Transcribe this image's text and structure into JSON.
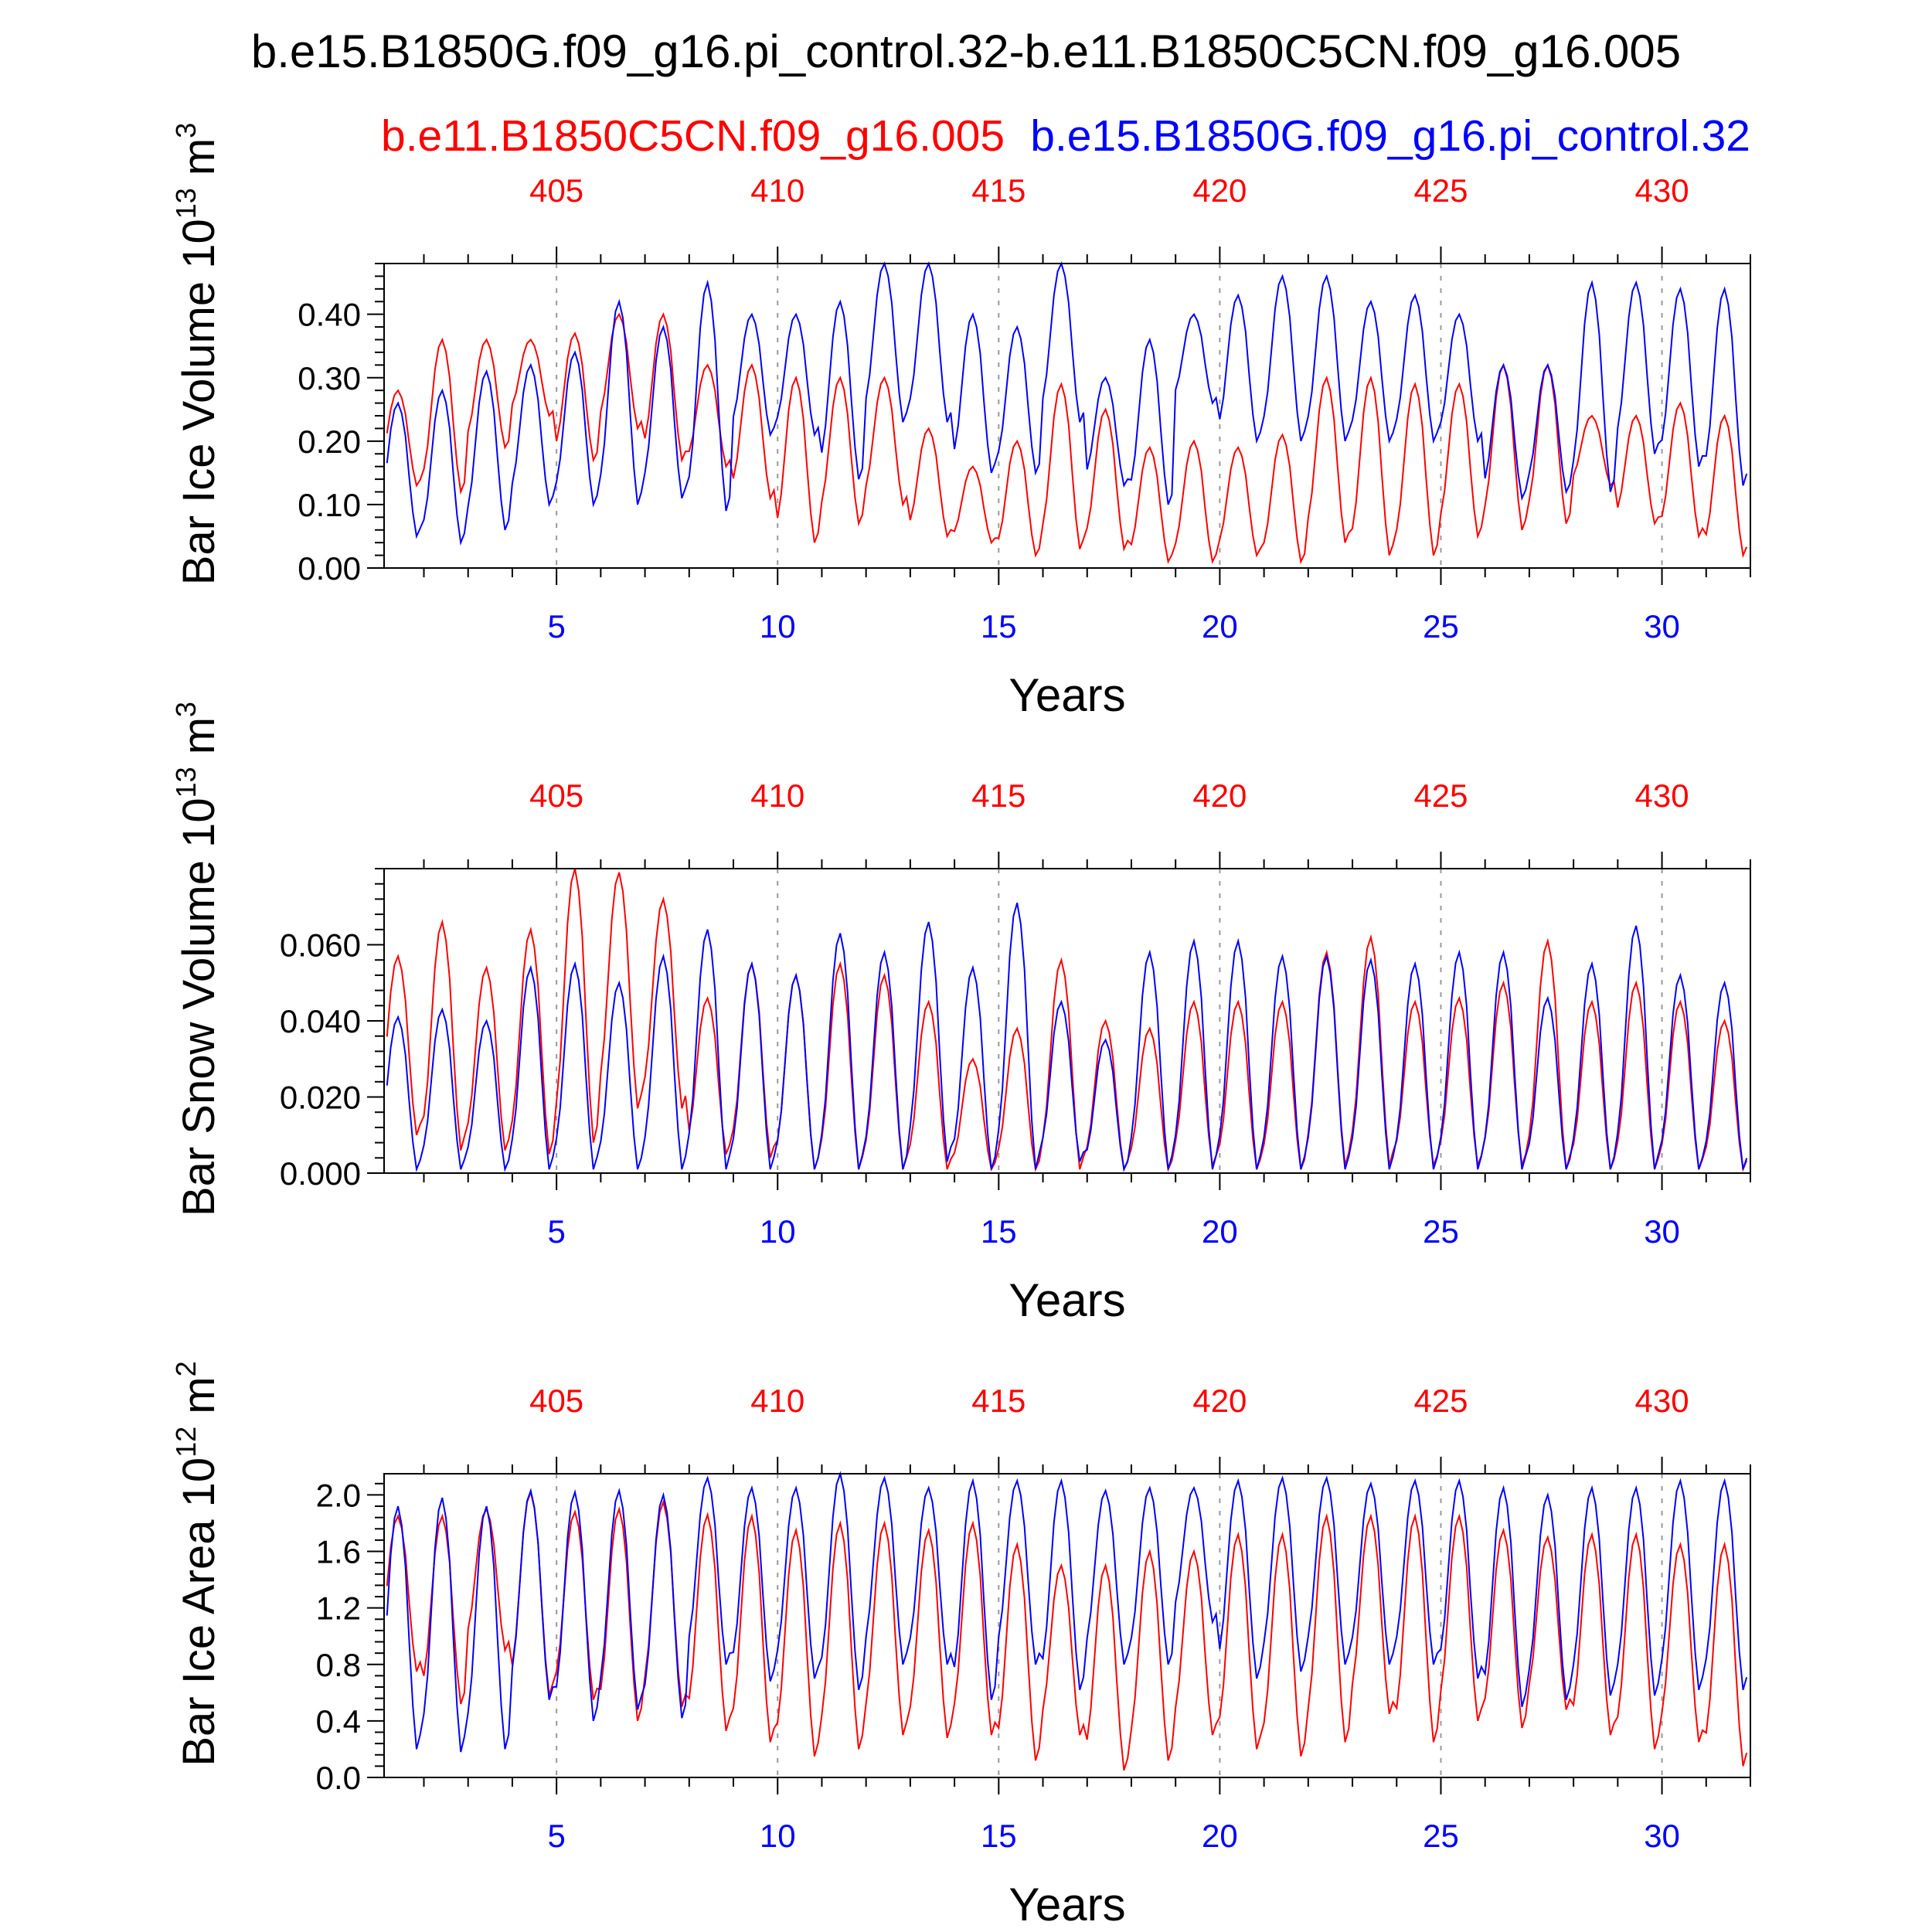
{
  "title": "b.e15.B1850G.f09_g16.pi_control.32-b.e11.B1850C5CN.f09_g16.005",
  "legend": {
    "red_case": "b.e11.B1850C5CN.f09_g16.005",
    "blue_case": "b.e15.B1850G.f09_g16.pi_control.32"
  },
  "colors": {
    "red": "#ff0000",
    "blue": "#0000ff",
    "grid": "#999999",
    "axis": "#000000"
  },
  "chart_data": [
    {
      "type": "line",
      "ylabel": "Bar Ice Volume",
      "yunit_base": "10",
      "yunit_exp": "13",
      "yunit_rest": "m",
      "yunit_pow": "3",
      "xlabel": "Years",
      "xlim": [
        1.1,
        32
      ],
      "ylim": [
        0,
        0.48
      ],
      "yticks": [
        0.0,
        0.1,
        0.2,
        0.3,
        0.4
      ],
      "ytick_labels": [
        "0.00",
        "0.10",
        "0.20",
        "0.30",
        "0.40"
      ],
      "xticks_bottom": [
        5,
        10,
        15,
        20,
        25,
        30
      ],
      "xtick_labels_bottom": [
        "5",
        "10",
        "15",
        "20",
        "25",
        "30"
      ],
      "xtick_labels_top": [
        "405",
        "410",
        "415",
        "420",
        "425",
        "430"
      ],
      "series": [
        {
          "color": "red",
          "amp_min": [
            0.13,
            0.12,
            0.19,
            0.24,
            0.17,
            0.22,
            0.17,
            0.16,
            0.11,
            0.04,
            0.07,
            0.1,
            0.05,
            0.04,
            0.02,
            0.03,
            0.03,
            0.01,
            0.01,
            0.02,
            0.01,
            0.04,
            0.02,
            0.02,
            0.05,
            0.06,
            0.07,
            0.13,
            0.07,
            0.05,
            0.02
          ],
          "amp_max": [
            0.28,
            0.36,
            0.36,
            0.36,
            0.37,
            0.4,
            0.4,
            0.32,
            0.32,
            0.3,
            0.3,
            0.3,
            0.22,
            0.16,
            0.2,
            0.29,
            0.25,
            0.19,
            0.2,
            0.19,
            0.21,
            0.3,
            0.3,
            0.29,
            0.29,
            0.32,
            0.32,
            0.24,
            0.24,
            0.26,
            0.24
          ]
        },
        {
          "color": "blue",
          "amp_min": [
            0.05,
            0.04,
            0.06,
            0.1,
            0.1,
            0.1,
            0.11,
            0.09,
            0.21,
            0.21,
            0.14,
            0.23,
            0.23,
            0.15,
            0.15,
            0.23,
            0.13,
            0.1,
            0.26,
            0.2,
            0.2,
            0.2,
            0.2,
            0.2,
            0.2,
            0.11,
            0.12,
            0.12,
            0.18,
            0.16,
            0.13
          ],
          "amp_max": [
            0.26,
            0.28,
            0.31,
            0.32,
            0.34,
            0.42,
            0.38,
            0.45,
            0.4,
            0.4,
            0.42,
            0.48,
            0.48,
            0.4,
            0.38,
            0.48,
            0.3,
            0.36,
            0.4,
            0.43,
            0.46,
            0.46,
            0.42,
            0.43,
            0.4,
            0.32,
            0.32,
            0.45,
            0.45,
            0.44,
            0.44
          ]
        }
      ]
    },
    {
      "type": "line",
      "ylabel": "Bar Snow Volume",
      "yunit_base": "10",
      "yunit_exp": "13",
      "yunit_rest": "m",
      "yunit_pow": "3",
      "xlabel": "Years",
      "xlim": [
        1.1,
        32
      ],
      "ylim": [
        0,
        0.08
      ],
      "yticks": [
        0.0,
        0.02,
        0.04,
        0.06
      ],
      "ytick_labels": [
        "0.000",
        "0.020",
        "0.040",
        "0.060"
      ],
      "xticks_bottom": [
        5,
        10,
        15,
        20,
        25,
        30
      ],
      "xtick_labels_bottom": [
        "5",
        "10",
        "15",
        "20",
        "25",
        "30"
      ],
      "xtick_labels_top": [
        "405",
        "410",
        "415",
        "420",
        "425",
        "430"
      ],
      "series": [
        {
          "color": "red",
          "amp_min": [
            0.01,
            0.006,
            0.006,
            0.005,
            0.008,
            0.017,
            0.017,
            0.005,
            0.004,
            0.001,
            0.001,
            0.001,
            0.001,
            0.001,
            0.001,
            0.001,
            0.001,
            0.001,
            0.002,
            0.001,
            0.001,
            0.002,
            0.002,
            0.002,
            0.002,
            0.002,
            0.001,
            0.001,
            0.001,
            0.001,
            0.001
          ],
          "amp_max": [
            0.057,
            0.066,
            0.054,
            0.064,
            0.08,
            0.079,
            0.072,
            0.046,
            0.055,
            0.052,
            0.055,
            0.052,
            0.045,
            0.03,
            0.038,
            0.056,
            0.04,
            0.038,
            0.045,
            0.045,
            0.045,
            0.058,
            0.062,
            0.045,
            0.046,
            0.05,
            0.061,
            0.045,
            0.05,
            0.045,
            0.04
          ]
        },
        {
          "color": "blue",
          "amp_min": [
            0.001,
            0.001,
            0.001,
            0.001,
            0.001,
            0.001,
            0.001,
            0.001,
            0.001,
            0.001,
            0.001,
            0.001,
            0.003,
            0.001,
            0.001,
            0.003,
            0.001,
            0.001,
            0.001,
            0.001,
            0.001,
            0.001,
            0.001,
            0.001,
            0.001,
            0.001,
            0.001,
            0.001,
            0.001,
            0.001,
            0.001
          ],
          "amp_max": [
            0.041,
            0.043,
            0.04,
            0.054,
            0.055,
            0.05,
            0.057,
            0.064,
            0.055,
            0.052,
            0.063,
            0.058,
            0.066,
            0.054,
            0.071,
            0.045,
            0.035,
            0.058,
            0.061,
            0.061,
            0.057,
            0.057,
            0.056,
            0.055,
            0.058,
            0.058,
            0.046,
            0.055,
            0.065,
            0.052,
            0.05
          ]
        }
      ]
    },
    {
      "type": "line",
      "ylabel": "Bar Ice Area",
      "yunit_base": "10",
      "yunit_exp": "12",
      "yunit_rest": "m",
      "yunit_pow": "2",
      "xlabel": "Years",
      "xlim": [
        1.1,
        32
      ],
      "ylim": [
        0,
        2.15
      ],
      "yticks": [
        0.0,
        0.4,
        0.8,
        1.2,
        1.6,
        2.0
      ],
      "ytick_labels": [
        "0.0",
        "0.4",
        "0.8",
        "1.2",
        "1.6",
        "2.0"
      ],
      "xticks_bottom": [
        5,
        10,
        15,
        20,
        25,
        30
      ],
      "xtick_labels_bottom": [
        "5",
        "10",
        "15",
        "20",
        "25",
        "30"
      ],
      "xtick_labels_top": [
        "405",
        "410",
        "415",
        "420",
        "425",
        "430"
      ],
      "series": [
        {
          "color": "red",
          "amp_min": [
            0.75,
            0.52,
            0.9,
            0.58,
            0.55,
            0.4,
            0.5,
            0.33,
            0.25,
            0.15,
            0.2,
            0.3,
            0.28,
            0.3,
            0.12,
            0.3,
            0.05,
            0.12,
            0.3,
            0.2,
            0.15,
            0.25,
            0.45,
            0.25,
            0.4,
            0.35,
            0.48,
            0.3,
            0.2,
            0.25,
            0.08
          ],
          "amp_max": [
            1.85,
            1.85,
            1.9,
            2.02,
            1.88,
            1.9,
            1.95,
            1.86,
            1.85,
            1.75,
            1.8,
            1.8,
            1.75,
            1.8,
            1.65,
            1.5,
            1.5,
            1.6,
            1.6,
            1.72,
            1.72,
            1.85,
            1.85,
            1.85,
            1.85,
            1.75,
            1.7,
            1.72,
            1.72,
            1.65,
            1.65
          ]
        },
        {
          "color": "blue",
          "amp_min": [
            0.2,
            0.18,
            0.2,
            0.55,
            0.4,
            0.48,
            0.42,
            0.8,
            0.68,
            0.7,
            0.62,
            0.8,
            0.8,
            0.55,
            0.8,
            0.62,
            0.8,
            0.8,
            1.1,
            0.7,
            0.75,
            0.8,
            0.8,
            0.8,
            0.7,
            0.5,
            0.55,
            0.58,
            0.58,
            0.62,
            0.62
          ],
          "amp_max": [
            1.92,
            1.98,
            1.92,
            2.03,
            2.02,
            2.03,
            2.0,
            2.12,
            2.05,
            2.05,
            2.15,
            2.12,
            2.05,
            2.1,
            2.1,
            2.1,
            2.03,
            2.05,
            2.05,
            2.1,
            2.12,
            2.12,
            2.08,
            2.1,
            2.1,
            2.05,
            2.0,
            2.05,
            2.05,
            2.1,
            2.1
          ]
        }
      ]
    }
  ]
}
